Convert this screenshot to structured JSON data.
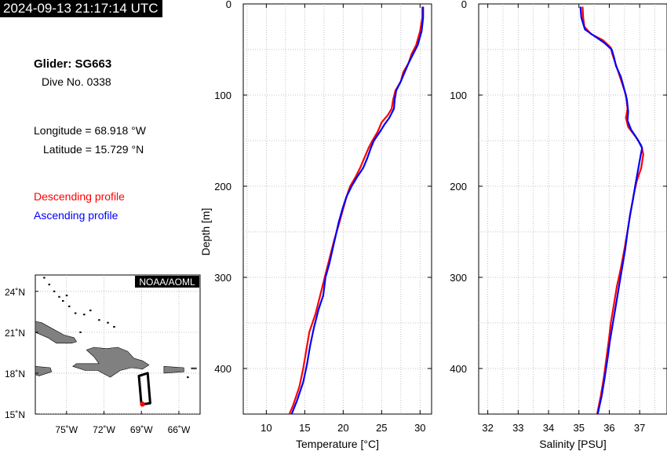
{
  "header": {
    "timestamp": "2024-09-13 21:17:14 UTC"
  },
  "info": {
    "glider": "Glider: SG663",
    "dive": "Dive No. 0338",
    "longitude": "Longitude = 68.918 °W",
    "latitude": "Latitude = 15.729 °N",
    "descending_label": "Descending profile",
    "ascending_label": "Ascending profile"
  },
  "colors": {
    "descending": "#ff0000",
    "ascending": "#0000ff",
    "land": "#808080"
  },
  "chart_data": [
    {
      "type": "line",
      "xlabel": "Temperature [°C]",
      "ylabel": "Depth [m]",
      "xlim": [
        7,
        31.5
      ],
      "ylim": [
        0,
        450
      ],
      "y_inverted": true,
      "grid": true,
      "xticks": [
        10,
        15,
        20,
        25,
        30
      ],
      "yticks": [
        0,
        100,
        200,
        300,
        400
      ],
      "series": [
        {
          "name": "Descending profile",
          "color": "#ff0000",
          "points": [
            [
              30.3,
              3
            ],
            [
              30.3,
              15
            ],
            [
              30.0,
              30
            ],
            [
              29.5,
              45
            ],
            [
              28.9,
              55
            ],
            [
              28.5,
              65
            ],
            [
              27.8,
              75
            ],
            [
              27.5,
              85
            ],
            [
              26.8,
              95
            ],
            [
              26.5,
              105
            ],
            [
              26.3,
              115
            ],
            [
              25.8,
              122
            ],
            [
              25.0,
              130
            ],
            [
              24.5,
              140
            ],
            [
              23.8,
              150
            ],
            [
              23.3,
              158
            ],
            [
              22.8,
              168
            ],
            [
              22.2,
              180
            ],
            [
              21.6,
              190
            ],
            [
              20.9,
              200
            ],
            [
              20.5,
              210
            ],
            [
              20.0,
              225
            ],
            [
              19.5,
              240
            ],
            [
              18.8,
              260
            ],
            [
              18.2,
              280
            ],
            [
              17.6,
              300
            ],
            [
              17.0,
              320
            ],
            [
              16.4,
              340
            ],
            [
              15.6,
              360
            ],
            [
              15.2,
              380
            ],
            [
              14.8,
              400
            ],
            [
              14.3,
              420
            ],
            [
              13.5,
              440
            ],
            [
              13.0,
              450
            ]
          ]
        },
        {
          "name": "Ascending profile",
          "color": "#0000ff",
          "points": [
            [
              30.4,
              3
            ],
            [
              30.4,
              15
            ],
            [
              30.2,
              30
            ],
            [
              29.7,
              45
            ],
            [
              29.1,
              55
            ],
            [
              28.5,
              65
            ],
            [
              28.0,
              75
            ],
            [
              27.5,
              85
            ],
            [
              26.9,
              95
            ],
            [
              26.7,
              105
            ],
            [
              26.6,
              115
            ],
            [
              26.0,
              125
            ],
            [
              25.4,
              132
            ],
            [
              24.8,
              140
            ],
            [
              24.0,
              150
            ],
            [
              23.6,
              158
            ],
            [
              23.1,
              170
            ],
            [
              22.6,
              180
            ],
            [
              21.8,
              190
            ],
            [
              21.1,
              200
            ],
            [
              20.4,
              212
            ],
            [
              19.9,
              225
            ],
            [
              19.4,
              240
            ],
            [
              19.0,
              255
            ],
            [
              18.6,
              270
            ],
            [
              18.2,
              285
            ],
            [
              17.7,
              300
            ],
            [
              17.4,
              320
            ],
            [
              16.8,
              335
            ],
            [
              16.2,
              355
            ],
            [
              15.7,
              375
            ],
            [
              15.3,
              395
            ],
            [
              14.8,
              415
            ],
            [
              14.0,
              435
            ],
            [
              13.3,
              450
            ]
          ]
        }
      ]
    },
    {
      "type": "line",
      "xlabel": "Salinity [PSU]",
      "ylabel": "",
      "xlim": [
        31.7,
        37.9
      ],
      "ylim": [
        0,
        450
      ],
      "y_inverted": true,
      "grid": true,
      "xticks": [
        32,
        33,
        34,
        35,
        36,
        37
      ],
      "yticks": [
        0,
        100,
        200,
        300,
        400
      ],
      "series": [
        {
          "name": "Descending profile",
          "color": "#ff0000",
          "points": [
            [
              35.12,
              3
            ],
            [
              35.14,
              15
            ],
            [
              35.18,
              25
            ],
            [
              35.4,
              33
            ],
            [
              35.8,
              40
            ],
            [
              36.05,
              48
            ],
            [
              36.1,
              55
            ],
            [
              36.2,
              65
            ],
            [
              36.3,
              75
            ],
            [
              36.45,
              90
            ],
            [
              36.55,
              100
            ],
            [
              36.6,
              115
            ],
            [
              36.55,
              125
            ],
            [
              36.62,
              135
            ],
            [
              36.85,
              145
            ],
            [
              37.05,
              155
            ],
            [
              37.12,
              165
            ],
            [
              37.05,
              180
            ],
            [
              36.9,
              195
            ],
            [
              36.8,
              210
            ],
            [
              36.72,
              225
            ],
            [
              36.62,
              245
            ],
            [
              36.52,
              265
            ],
            [
              36.38,
              290
            ],
            [
              36.25,
              310
            ],
            [
              36.15,
              330
            ],
            [
              36.05,
              350
            ],
            [
              35.98,
              370
            ],
            [
              35.9,
              390
            ],
            [
              35.82,
              410
            ],
            [
              35.72,
              430
            ],
            [
              35.6,
              450
            ]
          ]
        },
        {
          "name": "Ascending profile",
          "color": "#0000ff",
          "points": [
            [
              35.05,
              3
            ],
            [
              35.08,
              15
            ],
            [
              35.2,
              28
            ],
            [
              35.5,
              35
            ],
            [
              35.85,
              43
            ],
            [
              36.08,
              50
            ],
            [
              36.15,
              58
            ],
            [
              36.22,
              68
            ],
            [
              36.38,
              80
            ],
            [
              36.48,
              92
            ],
            [
              36.58,
              105
            ],
            [
              36.62,
              118
            ],
            [
              36.6,
              128
            ],
            [
              36.72,
              138
            ],
            [
              36.92,
              148
            ],
            [
              37.08,
              158
            ],
            [
              37.0,
              172
            ],
            [
              36.93,
              185
            ],
            [
              36.85,
              200
            ],
            [
              36.78,
              215
            ],
            [
              36.68,
              232
            ],
            [
              36.6,
              250
            ],
            [
              36.52,
              270
            ],
            [
              36.42,
              290
            ],
            [
              36.32,
              310
            ],
            [
              36.22,
              330
            ],
            [
              36.12,
              350
            ],
            [
              36.02,
              370
            ],
            [
              35.94,
              390
            ],
            [
              35.85,
              410
            ],
            [
              35.75,
              430
            ],
            [
              35.62,
              450
            ]
          ]
        }
      ]
    }
  ],
  "map": {
    "badge": "NOAA/AOML",
    "lon_range": [
      -77.5,
      -64.3
    ],
    "lat_range": [
      15.0,
      25.2
    ],
    "x_ticks": [
      {
        "lon": -75,
        "label": "75˚W"
      },
      {
        "lon": -72,
        "label": "72˚W"
      },
      {
        "lon": -69,
        "label": "69˚W"
      },
      {
        "lon": -66,
        "label": "66˚W"
      }
    ],
    "y_ticks": [
      {
        "lat": 24,
        "label": "24˚N"
      },
      {
        "lat": 21,
        "label": "21˚N"
      },
      {
        "lat": 18,
        "label": "18˚N"
      },
      {
        "lat": 15,
        "label": "15˚N"
      }
    ],
    "land": [
      {
        "name": "cuba",
        "coords": [
          [
            -77.5,
            21.0
          ],
          [
            -76.5,
            20.6
          ],
          [
            -75.8,
            20.2
          ],
          [
            -74.6,
            20.2
          ],
          [
            -74.2,
            20.3
          ],
          [
            -74.4,
            20.6
          ],
          [
            -75.2,
            20.8
          ],
          [
            -76.2,
            21.3
          ],
          [
            -77.0,
            21.7
          ],
          [
            -77.5,
            21.8
          ]
        ]
      },
      {
        "name": "hispaniola",
        "coords": [
          [
            -74.5,
            18.5
          ],
          [
            -73.5,
            18.2
          ],
          [
            -72.5,
            18.2
          ],
          [
            -71.5,
            17.7
          ],
          [
            -70.7,
            18.2
          ],
          [
            -69.8,
            18.4
          ],
          [
            -68.9,
            18.3
          ],
          [
            -68.4,
            18.6
          ],
          [
            -68.9,
            18.9
          ],
          [
            -69.6,
            19.1
          ],
          [
            -70.1,
            19.6
          ],
          [
            -70.9,
            19.9
          ],
          [
            -71.8,
            19.8
          ],
          [
            -72.8,
            19.9
          ],
          [
            -73.4,
            19.7
          ],
          [
            -72.8,
            19.2
          ],
          [
            -72.4,
            18.7
          ],
          [
            -74.2,
            18.7
          ]
        ]
      },
      {
        "name": "jamaica",
        "coords": [
          [
            -77.5,
            18.5
          ],
          [
            -76.3,
            18.4
          ],
          [
            -76.2,
            18.1
          ],
          [
            -77.2,
            17.8
          ],
          [
            -77.5,
            17.9
          ]
        ]
      },
      {
        "name": "puerto-rico",
        "coords": [
          [
            -67.2,
            18.5
          ],
          [
            -65.6,
            18.4
          ],
          [
            -65.6,
            18.1
          ],
          [
            -67.2,
            18.0
          ]
        ]
      },
      {
        "name": "virgin-islands",
        "coords": [
          [
            -65.0,
            18.4
          ],
          [
            -64.6,
            18.4
          ],
          [
            -64.6,
            18.3
          ],
          [
            -65.0,
            18.3
          ]
        ]
      }
    ],
    "islets": [
      [
        -76.4,
        24.5
      ],
      [
        -76.0,
        24.0
      ],
      [
        -75.6,
        23.6
      ],
      [
        -75.3,
        23.3
      ],
      [
        -74.8,
        22.9
      ],
      [
        -74.3,
        22.4
      ],
      [
        -73.6,
        22.3
      ],
      [
        -73.1,
        22.6
      ],
      [
        -72.4,
        21.9
      ],
      [
        -71.7,
        21.7
      ],
      [
        -71.2,
        21.4
      ],
      [
        -76.8,
        25.0
      ],
      [
        -75.0,
        23.7
      ],
      [
        -73.9,
        21.0
      ],
      [
        -65.3,
        17.7
      ]
    ],
    "track": [
      [
        -69.0,
        15.7
      ],
      [
        -69.2,
        17.8
      ],
      [
        -68.5,
        18.0
      ],
      [
        -68.3,
        15.8
      ],
      [
        -69.0,
        15.7
      ]
    ],
    "current_position": [
      -68.918,
      15.729
    ],
    "track_color": "#000000",
    "position_color": "#ff0000"
  }
}
